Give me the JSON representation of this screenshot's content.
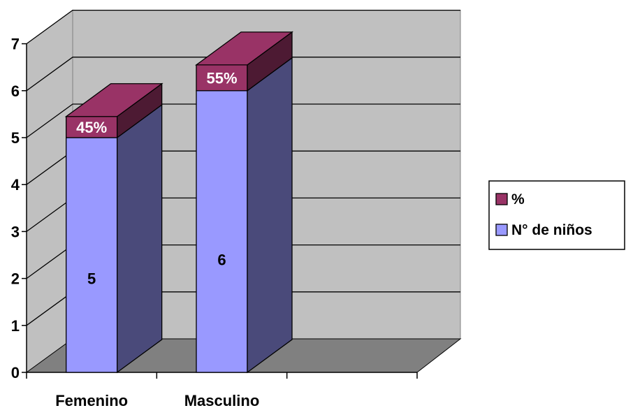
{
  "chart_data": {
    "type": "bar",
    "stacked": true,
    "three_d": true,
    "categories": [
      "Femenino",
      "Masculino",
      ""
    ],
    "series": [
      {
        "name": "N° de niños",
        "values": [
          5,
          6,
          0
        ],
        "labels": [
          "5",
          "6",
          ""
        ],
        "color": "#9999ff",
        "side_color": "#4a4a7a"
      },
      {
        "name": "%",
        "values": [
          0.45,
          0.55,
          0
        ],
        "labels": [
          "45%",
          "55%",
          ""
        ],
        "color": "#993366",
        "side_color": "#4d1a33"
      }
    ],
    "y_ticks": [
      "0",
      "1",
      "2",
      "3",
      "4",
      "5",
      "6",
      "7"
    ],
    "ylim": [
      0,
      7
    ],
    "grid": true,
    "legend_position": "right",
    "legend": [
      {
        "label": "%",
        "color": "#993366"
      },
      {
        "label": "N° de niños",
        "color": "#9999ff"
      }
    ],
    "colors": {
      "wall": "#c0c0c0",
      "floor": "#808080",
      "gridline": "#000000"
    }
  }
}
